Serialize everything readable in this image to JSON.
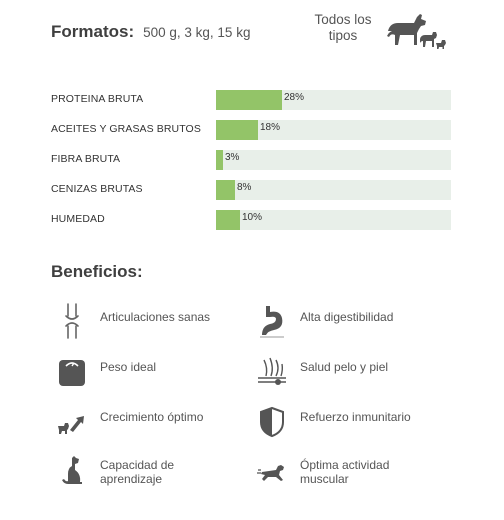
{
  "formatos": {
    "label": "Formatos:",
    "value": "500 g, 3 kg, 15 kg"
  },
  "todos_tipos": {
    "line1": "Todos los",
    "line2": "tipos"
  },
  "nutrients": [
    {
      "name": "PROTEINA BRUTA",
      "percent": 28,
      "label": "28%"
    },
    {
      "name": "ACEITES Y GRASAS BRUTOS",
      "percent": 18,
      "label": "18%"
    },
    {
      "name": "FIBRA BRUTA",
      "percent": 3,
      "label": "3%"
    },
    {
      "name": "CENIZAS BRUTAS",
      "percent": 8,
      "label": "8%"
    },
    {
      "name": "HUMEDAD",
      "percent": 10,
      "label": "10%"
    }
  ],
  "beneficios_title": "Beneficios:",
  "benefits": [
    {
      "line1": "Articulaciones sanas",
      "line2": "",
      "icon": "joints-icon"
    },
    {
      "line1": "Alta digestibilidad",
      "line2": "",
      "icon": "stomach-icon"
    },
    {
      "line1": "Peso ideal",
      "line2": "",
      "icon": "scale-icon"
    },
    {
      "line1": "Salud pelo y piel",
      "line2": "",
      "icon": "hair-skin-icon"
    },
    {
      "line1": "Crecimiento óptimo",
      "line2": "",
      "icon": "growth-icon"
    },
    {
      "line1": "Refuerzo inmunitario",
      "line2": "",
      "icon": "shield-icon"
    },
    {
      "line1": "Capacidad de",
      "line2": "aprendizaje",
      "icon": "sitting-dog-icon"
    },
    {
      "line1": "Óptima actividad",
      "line2": "muscular",
      "icon": "running-dog-icon"
    }
  ],
  "colors": {
    "bar_fill": "#93c468",
    "bar_track": "#e8efe9",
    "icon": "#555555"
  }
}
